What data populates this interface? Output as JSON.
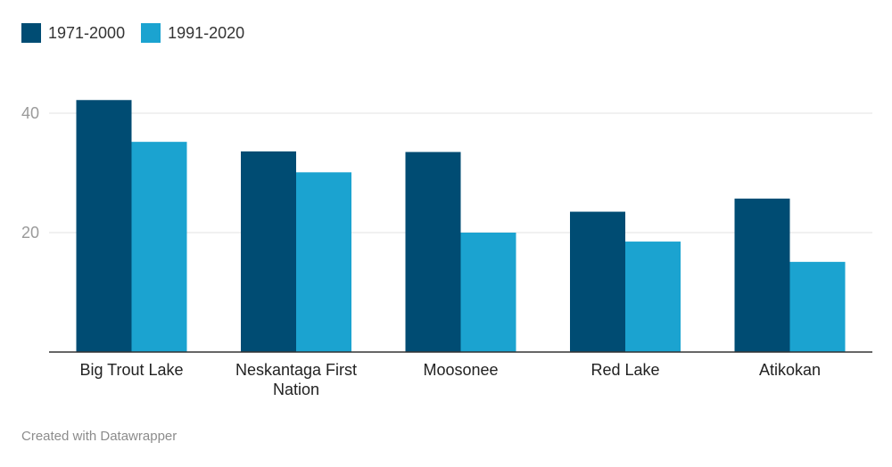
{
  "legend": [
    {
      "label": "1971-2000",
      "color": "#004c73"
    },
    {
      "label": "1991-2020",
      "color": "#1ba3d0"
    }
  ],
  "footer": {
    "text": "Created with Datawrapper"
  },
  "chart_data": {
    "type": "bar",
    "categories": [
      "Big Trout Lake",
      "Neskantaga First\nNation",
      "Moosonee",
      "Red Lake",
      "Atikokan"
    ],
    "series": [
      {
        "name": "1971-2000",
        "color": "#004c73",
        "values": [
          42.2,
          33.6,
          33.5,
          23.5,
          25.7
        ]
      },
      {
        "name": "1991-2020",
        "color": "#1ba3d0",
        "values": [
          35.2,
          30.1,
          20.0,
          18.5,
          15.1
        ]
      }
    ],
    "yticks": [
      20,
      40
    ],
    "ylim": [
      0,
      48
    ],
    "grid": true,
    "legend_position": "top-left"
  }
}
